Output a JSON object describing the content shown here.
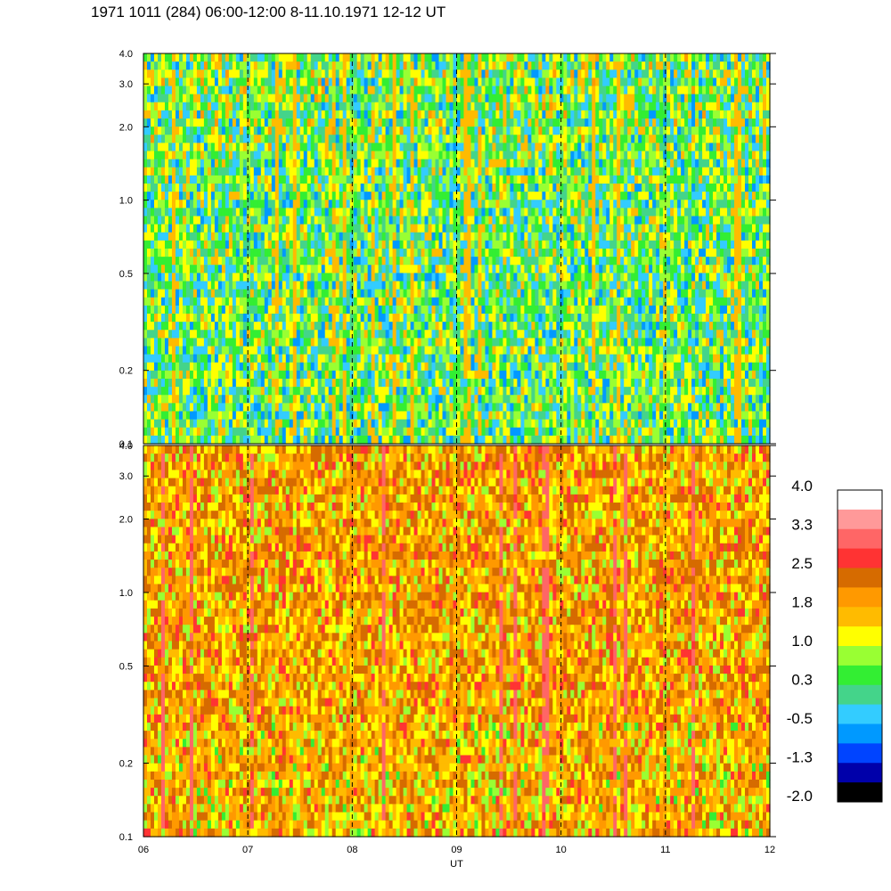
{
  "title": "1971 1011 (284) 06:00-12:00 8-11.10.1971  12-12 UT",
  "chart_data": {
    "type": "heatmap",
    "xlabel": "UT",
    "x_ticks": [
      "06",
      "07",
      "08",
      "09",
      "10",
      "11",
      "12"
    ],
    "x_range": [
      6,
      12
    ],
    "dashed_vertical_lines_at": [
      7,
      8,
      9,
      10,
      11
    ],
    "y_scale": "log",
    "panels": [
      {
        "name": "upper",
        "y_range": [
          0.1,
          4.0
        ],
        "y_ticks": [
          "4.0",
          "3.0",
          "2.0",
          "1.0",
          "0.5",
          "0.2",
          "0.1"
        ],
        "dominant_levels": [
          0.3,
          -0.5,
          1.0
        ]
      },
      {
        "name": "lower",
        "y_range": [
          0.1,
          4.0
        ],
        "y_ticks": [
          "4.0",
          "3.0",
          "2.0",
          "1.0",
          "0.5",
          "0.2",
          "0.1"
        ],
        "dominant_levels": [
          1.8,
          1.0,
          2.5
        ]
      }
    ],
    "colorbar": {
      "labels": [
        "4.0",
        "3.3",
        "2.5",
        "1.8",
        "1.0",
        "0.3",
        "-0.5",
        "-1.3",
        "-2.0"
      ],
      "colors": [
        "#ffffff",
        "#ff9999",
        "#ff6666",
        "#ff3333",
        "#d66b00",
        "#ff9900",
        "#ffbb00",
        "#ffff00",
        "#99ff33",
        "#33ee33",
        "#44d48a",
        "#33ccff",
        "#0099ff",
        "#0044ff",
        "#0000aa",
        "#000000"
      ]
    }
  }
}
